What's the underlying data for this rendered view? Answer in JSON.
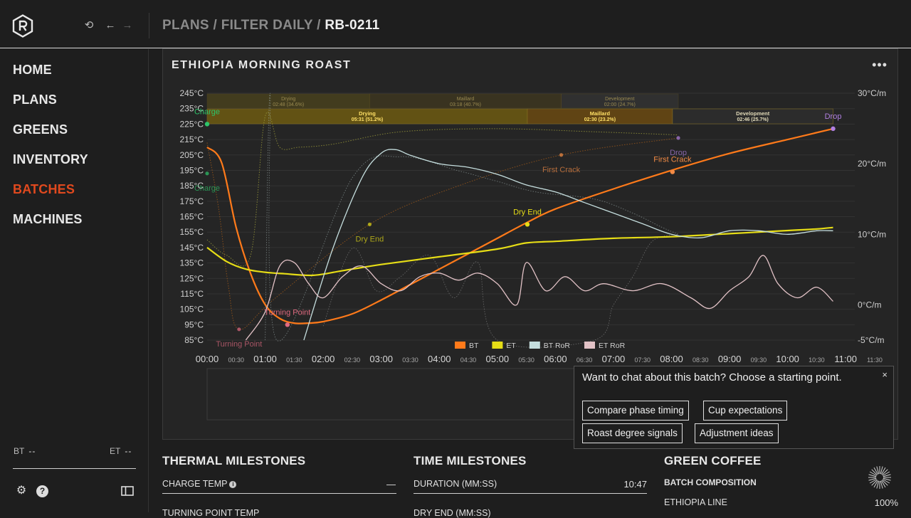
{
  "breadcrumb": {
    "items": [
      "PLANS",
      "FILTER DAILY"
    ],
    "sep": "/",
    "current": "RB-0211"
  },
  "sidebar": {
    "items": [
      {
        "label": "HOME",
        "active": false
      },
      {
        "label": "PLANS",
        "active": false
      },
      {
        "label": "GREENS",
        "active": false
      },
      {
        "label": "INVENTORY",
        "active": false
      },
      {
        "label": "BATCHES",
        "active": true
      },
      {
        "label": "MACHINES",
        "active": false
      }
    ],
    "bt_label": "BT",
    "bt_value": "--",
    "et_label": "ET",
    "et_value": "--"
  },
  "icons": {
    "logo": "logo-r-hexagon",
    "history": "history-icon",
    "back": "arrow-left-icon",
    "forward": "arrow-right-icon",
    "settings": "gear-icon",
    "help": "help-icon",
    "panel": "sidebar-toggle-icon",
    "more": "more-icon",
    "close": "close-icon",
    "spinner": "loading-icon"
  },
  "colors": {
    "bt": "#ff7a1a",
    "et": "#e6dd16",
    "bt_ror": "#c5dede",
    "et_ror": "#e2c2c6",
    "active_nav": "#e0491e",
    "charge": "#2ec46a",
    "turning_point": "#e06a80",
    "first_crack": "#f28b45",
    "drop": "#b07fe0"
  },
  "panel": {
    "title": "ETHIOPIA MORNING ROAST",
    "more_label": "•••"
  },
  "chart_data": {
    "type": "line",
    "xlabel": "",
    "ylabel": "",
    "x_ticks": [
      "00:00",
      "00:30",
      "01:00",
      "01:30",
      "02:00",
      "02:30",
      "03:00",
      "03:30",
      "04:00",
      "04:30",
      "05:00",
      "05:30",
      "06:00",
      "06:30",
      "07:00",
      "07:30",
      "08:00",
      "08:30",
      "09:00",
      "09:30",
      "10:00",
      "10:30",
      "11:00",
      "11:30"
    ],
    "y_ticks_left": [
      "245°C",
      "235°C",
      "225°C",
      "215°C",
      "205°C",
      "195°C",
      "185°C",
      "175°C",
      "165°C",
      "155°C",
      "145°C",
      "135°C",
      "125°C",
      "115°C",
      "105°C",
      "95°C",
      "85°C"
    ],
    "y_ticks_right": [
      "30°C/m",
      "20°C/m",
      "10°C/m",
      "0°C/m",
      "-5°C/m"
    ],
    "ylim_left": [
      85,
      245
    ],
    "ylim_right": [
      -5,
      30
    ],
    "xlim_seconds": [
      0,
      690
    ],
    "legend": [
      "BT",
      "ET",
      "BT RoR",
      "ET RoR"
    ],
    "series": [
      {
        "name": "BT",
        "x": [
          0,
          15,
          30,
          45,
          60,
          75,
          90,
          105,
          120,
          150,
          180,
          210,
          240,
          270,
          300,
          330,
          360,
          420,
          480,
          540,
          600,
          647
        ],
        "y": [
          210,
          200,
          158,
          128,
          108,
          99,
          96,
          96,
          97,
          102,
          111,
          121,
          131,
          141,
          151,
          161,
          170,
          183,
          195,
          206,
          215,
          222
        ]
      },
      {
        "name": "ET",
        "x": [
          0,
          20,
          40,
          60,
          80,
          110,
          140,
          180,
          240,
          300,
          330,
          360,
          420,
          480,
          540,
          600,
          630,
          647
        ],
        "y": [
          145,
          136,
          131,
          129,
          128,
          127,
          130,
          134,
          139,
          144,
          148,
          149,
          151,
          152,
          154,
          156,
          157,
          158
        ]
      },
      {
        "name": "BT RoR",
        "x": [
          100,
          130,
          160,
          180,
          195,
          210,
          240,
          270,
          300,
          330,
          360,
          390,
          420,
          450,
          480,
          510,
          540,
          570,
          600,
          630,
          647
        ],
        "y": [
          -5,
          8,
          18,
          21.5,
          22,
          21.2,
          20,
          19.5,
          18.5,
          17,
          16,
          14.5,
          13,
          11.5,
          10,
          9.5,
          10.5,
          10.5,
          10,
          10.5,
          10.5
        ]
      },
      {
        "name": "ET RoR",
        "x": [
          40,
          60,
          75,
          90,
          105,
          120,
          140,
          160,
          180,
          200,
          220,
          240,
          260,
          280,
          300,
          320,
          330,
          350,
          370,
          390,
          410,
          440,
          470,
          500,
          520,
          540,
          560,
          575,
          590,
          610,
          630,
          647
        ],
        "y": [
          -5,
          -1,
          5.5,
          6,
          3,
          1,
          4,
          5.5,
          3,
          2,
          4,
          4.5,
          3.5,
          4.5,
          3,
          0,
          6,
          2,
          4,
          2,
          3,
          2,
          3,
          1,
          -0.5,
          2,
          4,
          7,
          3,
          1,
          2.5,
          0.5
        ]
      }
    ],
    "events": [
      {
        "label": "Charge",
        "x": 0,
        "y": 225
      },
      {
        "label": "Turning Point",
        "x": 83,
        "y": 95
      },
      {
        "label": "Dry End",
        "x": 331,
        "y": 160
      },
      {
        "label": "First Crack",
        "x": 481,
        "y": 194
      },
      {
        "label": "Drop",
        "x": 647,
        "y": 222
      }
    ],
    "reference_events": [
      {
        "label": "Charge",
        "x": 0,
        "y": 193
      },
      {
        "label": "Turning Point",
        "x": 33,
        "y": 92
      },
      {
        "label": "Dry End",
        "x": 168,
        "y": 160
      },
      {
        "label": "First Crack",
        "x": 366,
        "y": 205
      },
      {
        "label": "Drop",
        "x": 487,
        "y": 216
      }
    ],
    "phases": [
      {
        "name": "Drying",
        "time": "05:31",
        "pct": "51.2%",
        "start": 0,
        "end": 331
      },
      {
        "name": "Maillard",
        "time": "02:30",
        "pct": "23.2%",
        "start": 331,
        "end": 481
      },
      {
        "name": "Development",
        "time": "02:46",
        "pct": "25.7%",
        "start": 481,
        "end": 647
      }
    ],
    "reference_phases": [
      {
        "name": "Drying",
        "time": "02:48",
        "pct": "34.6%",
        "start": 0,
        "end": 168
      },
      {
        "name": "Maillard",
        "time": "03:18",
        "pct": "40.7%",
        "start": 168,
        "end": 366
      },
      {
        "name": "Development",
        "time": "02:00",
        "pct": "24.7%",
        "start": 366,
        "end": 487
      }
    ]
  },
  "chat": {
    "question": "Want to chat about this batch? Choose a starting point.",
    "close_label": "×",
    "options": [
      "Compare phase timing",
      "Cup expectations",
      "Roast degree signals",
      "Adjustment ideas"
    ]
  },
  "sections": {
    "thermal": {
      "title": "THERMAL MILESTONES",
      "rows": [
        {
          "label": "CHARGE TEMP",
          "value": "—"
        },
        {
          "label": "TURNING POINT TEMP",
          "value": ""
        }
      ]
    },
    "time": {
      "title": "TIME MILESTONES",
      "rows": [
        {
          "label": "DURATION (MM:SS)",
          "value": "10:47"
        },
        {
          "label": "DRY END (MM:SS)",
          "value": ""
        }
      ]
    },
    "green": {
      "title": "GREEN COFFEE",
      "subtitle": "BATCH COMPOSITION",
      "rows": [
        {
          "label": "ETHIOPIA LINE",
          "value": "100%"
        }
      ]
    }
  }
}
